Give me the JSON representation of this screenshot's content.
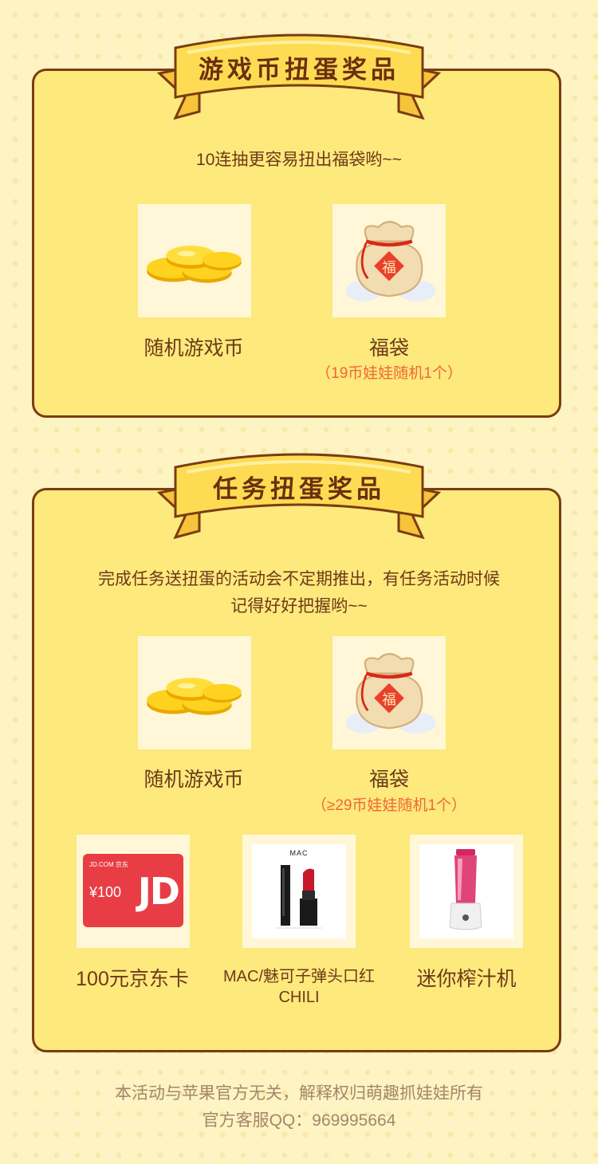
{
  "section1": {
    "title": "游戏币扭蛋奖品",
    "note": "10连抽更容易扭出福袋哟~~",
    "prizes": [
      {
        "icon": "coins-icon",
        "label": "随机游戏币",
        "sub": ""
      },
      {
        "icon": "lucky-bag-icon",
        "label": "福袋",
        "sub": "（19币娃娃随机1个）"
      }
    ]
  },
  "section2": {
    "title": "任务扭蛋奖品",
    "note_line1": "完成任务送扭蛋的活动会不定期推出，有任务活动时候",
    "note_line2": "记得好好把握哟~~",
    "prizes": [
      {
        "icon": "coins-icon",
        "label": "随机游戏币",
        "sub": ""
      },
      {
        "icon": "lucky-bag-icon",
        "label": "福袋",
        "sub": "（≥29币娃娃随机1个）"
      },
      {
        "icon": "jd-card-icon",
        "label": "100元京东卡",
        "card_brand": "JD.COM 京东",
        "card_value": "¥100",
        "card_logo": "JD"
      },
      {
        "icon": "lipstick-icon",
        "label": "MAC/魅可子弹头口红",
        "label2": "CHILI",
        "brand": "MAC"
      },
      {
        "icon": "juicer-icon",
        "label": "迷你榨汁机"
      }
    ]
  },
  "footer": {
    "line1": "本活动与苹果官方无关，解释权归萌趣抓娃娃所有",
    "line2": "官方客服QQ：969995664"
  },
  "colors": {
    "panel": "#fde97c",
    "border": "#7a3c12",
    "ribbon": "#fddc53",
    "accent_text": "#f0673a"
  }
}
